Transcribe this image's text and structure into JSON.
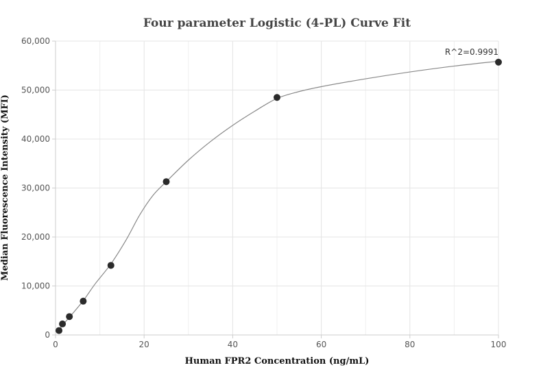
{
  "chart_data": {
    "type": "scatter",
    "title": "Four parameter Logistic (4-PL) Curve Fit",
    "xlabel": "Human FPR2 Concentration (ng/mL)",
    "ylabel": "Median Fluorescence Intensity (MFI)",
    "xlim": [
      0,
      100
    ],
    "ylim": [
      0,
      60000
    ],
    "x_ticks": [
      0,
      20,
      40,
      60,
      80,
      100
    ],
    "y_ticks": [
      0,
      10000,
      20000,
      30000,
      40000,
      50000,
      60000
    ],
    "x_tick_labels": [
      "0",
      "20",
      "40",
      "60",
      "80",
      "100"
    ],
    "y_tick_labels": [
      "0",
      "10,000",
      "20,000",
      "30,000",
      "40,000",
      "50,000",
      "60,000"
    ],
    "grid": true,
    "legend": "none",
    "annotation": "R^2=0.9991",
    "points_color": "#2b2b2b",
    "curve_color": "#888888",
    "series": [
      {
        "x": [
          0.78,
          1.56,
          3.125,
          6.25,
          12.5,
          25,
          50,
          100
        ],
        "y": [
          900,
          2250,
          3750,
          6900,
          14200,
          31300,
          48500,
          55700
        ]
      }
    ],
    "fit_curve": {
      "x": [
        0,
        0.78,
        1.56,
        3.125,
        6.25,
        9,
        12.5,
        16,
        19,
        22,
        25,
        30,
        35,
        40,
        45,
        50,
        55,
        60,
        70,
        80,
        90,
        100
      ],
      "y": [
        800,
        1000,
        2000,
        3600,
        7000,
        10500,
        14500,
        19500,
        24500,
        28500,
        31300,
        35700,
        39500,
        42800,
        45700,
        48300,
        49700,
        50700,
        52300,
        53700,
        54900,
        55900
      ]
    }
  }
}
